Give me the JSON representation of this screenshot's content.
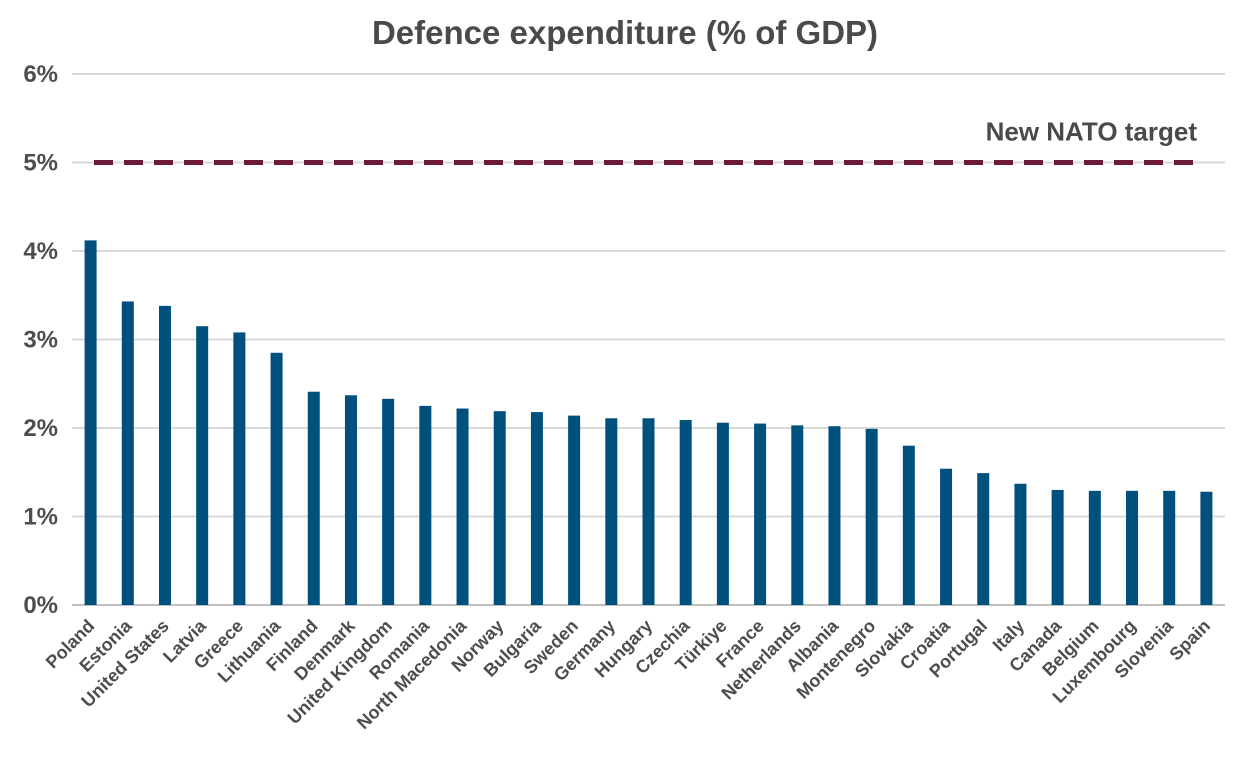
{
  "chart_data": {
    "type": "bar",
    "title": "Defence expenditure (% of GDP)",
    "xlabel": "",
    "ylabel": "",
    "ylim": [
      0,
      6
    ],
    "yticks": [
      0,
      1,
      2,
      3,
      4,
      5,
      6
    ],
    "ytick_labels": [
      "0%",
      "1%",
      "2%",
      "3%",
      "4%",
      "5%",
      "6%"
    ],
    "grid": true,
    "categories": [
      "Poland",
      "Estonia",
      "United States",
      "Latvia",
      "Greece",
      "Lithuania",
      "Finland",
      "Denmark",
      "United Kingdom",
      "Romania",
      "North Macedonia",
      "Norway",
      "Bulgaria",
      "Sweden",
      "Germany",
      "Hungary",
      "Czechia",
      "Türkiye",
      "France",
      "Netherlands",
      "Albania",
      "Montenegro",
      "Slovakia",
      "Croatia",
      "Portugal",
      "Italy",
      "Canada",
      "Belgium",
      "Luxembourg",
      "Slovenia",
      "Spain"
    ],
    "values": [
      4.12,
      3.43,
      3.38,
      3.15,
      3.08,
      2.85,
      2.41,
      2.37,
      2.33,
      2.25,
      2.22,
      2.19,
      2.18,
      2.14,
      2.11,
      2.11,
      2.09,
      2.06,
      2.05,
      2.03,
      2.02,
      1.99,
      1.8,
      1.54,
      1.49,
      1.37,
      1.3,
      1.29,
      1.29,
      1.29,
      1.28
    ],
    "bar_color": "#00507d",
    "reference_line": {
      "label": "New NATO target",
      "value": 5,
      "color": "#6b1a3a",
      "style": "dashed"
    }
  }
}
